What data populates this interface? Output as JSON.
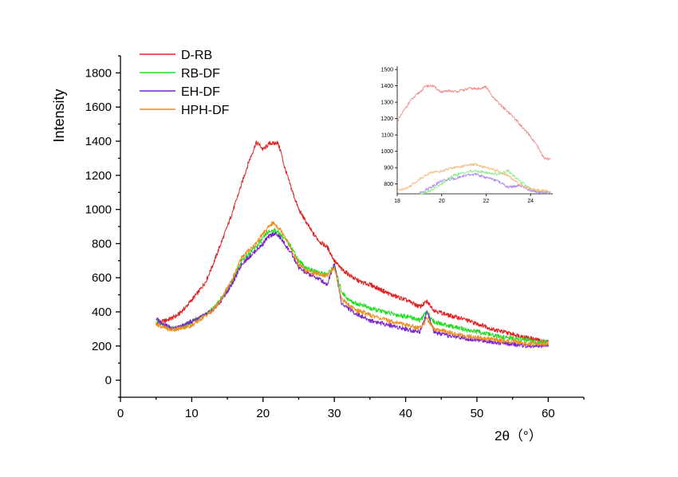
{
  "chart_data": [
    {
      "type": "line",
      "title": "",
      "xlabel": "2θ（°）",
      "ylabel": "Intensity",
      "xlim": [
        0,
        65
      ],
      "ylim": [
        -100,
        1900
      ],
      "xticks": [
        0,
        10,
        20,
        30,
        40,
        50,
        60
      ],
      "yticks": [
        0,
        200,
        400,
        600,
        800,
        1000,
        1200,
        1400,
        1600,
        1800
      ],
      "legend_position": "top-left",
      "grid": false,
      "series": [
        {
          "name": "D-RB",
          "color": "#e02020",
          "x": [
            5,
            6,
            7,
            8,
            9,
            10,
            11,
            12,
            13,
            14,
            15,
            16,
            17,
            18,
            18.5,
            19,
            19.5,
            20,
            20.5,
            21,
            21.5,
            22,
            22.5,
            23,
            24,
            25,
            26,
            27,
            28,
            29,
            30,
            31,
            32,
            33,
            34,
            35,
            36,
            37,
            38,
            39,
            40,
            41,
            42,
            43,
            44,
            45,
            46,
            47,
            48,
            49,
            50,
            51,
            52,
            53,
            54,
            55,
            56,
            57,
            58,
            59,
            60
          ],
          "y": [
            330,
            345,
            360,
            380,
            420,
            470,
            520,
            580,
            680,
            790,
            900,
            1020,
            1150,
            1280,
            1330,
            1390,
            1380,
            1350,
            1370,
            1390,
            1385,
            1395,
            1340,
            1250,
            1120,
            1000,
            930,
            860,
            810,
            780,
            700,
            650,
            620,
            590,
            570,
            560,
            540,
            520,
            500,
            485,
            470,
            450,
            430,
            460,
            410,
            395,
            380,
            370,
            360,
            345,
            330,
            320,
            300,
            290,
            280,
            270,
            260,
            250,
            240,
            230,
            225
          ]
        },
        {
          "name": "RB-DF",
          "color": "#22dd22",
          "x": [
            5,
            6,
            7,
            8,
            9,
            10,
            11,
            12,
            13,
            14,
            15,
            16,
            17,
            18,
            19,
            20,
            20.5,
            21,
            21.5,
            22,
            22.5,
            23,
            24,
            25,
            26,
            27,
            28,
            29,
            30,
            31,
            32,
            33,
            34,
            35,
            36,
            37,
            38,
            39,
            40,
            41,
            42,
            43,
            44,
            45,
            46,
            47,
            48,
            49,
            50,
            51,
            52,
            53,
            54,
            55,
            56,
            57,
            58,
            59,
            60
          ],
          "y": [
            345,
            320,
            305,
            300,
            320,
            340,
            365,
            390,
            420,
            470,
            530,
            600,
            700,
            740,
            780,
            830,
            860,
            870,
            880,
            870,
            850,
            830,
            780,
            700,
            660,
            640,
            630,
            620,
            670,
            520,
            470,
            450,
            440,
            420,
            410,
            400,
            390,
            380,
            375,
            365,
            350,
            400,
            340,
            330,
            320,
            310,
            300,
            290,
            285,
            275,
            265,
            255,
            250,
            245,
            240,
            235,
            225,
            218,
            225
          ]
        },
        {
          "name": "EH-DF",
          "color": "#7a22cc",
          "x": [
            5,
            6,
            7,
            8,
            9,
            10,
            11,
            12,
            13,
            14,
            15,
            16,
            17,
            18,
            19,
            20,
            20.5,
            21,
            21.5,
            22,
            22.5,
            23,
            24,
            25,
            26,
            27,
            28,
            29,
            30,
            31,
            32,
            33,
            34,
            35,
            36,
            37,
            38,
            39,
            40,
            41,
            42,
            43,
            44,
            45,
            46,
            47,
            48,
            49,
            50,
            51,
            52,
            53,
            54,
            55,
            56,
            57,
            58,
            59,
            60
          ],
          "y": [
            360,
            330,
            310,
            305,
            325,
            345,
            365,
            385,
            410,
            460,
            520,
            590,
            680,
            720,
            760,
            800,
            830,
            845,
            860,
            850,
            830,
            800,
            740,
            660,
            630,
            610,
            590,
            560,
            690,
            450,
            420,
            390,
            370,
            350,
            340,
            330,
            320,
            310,
            300,
            290,
            285,
            400,
            280,
            270,
            260,
            255,
            250,
            240,
            235,
            230,
            225,
            220,
            215,
            210,
            205,
            200,
            200,
            200,
            205
          ]
        },
        {
          "name": "HPH-DF",
          "color": "#f08c1e",
          "x": [
            5,
            6,
            7,
            8,
            9,
            10,
            11,
            12,
            13,
            14,
            15,
            16,
            17,
            18,
            19,
            20,
            20.5,
            21,
            21.5,
            22,
            22.5,
            23,
            24,
            25,
            26,
            27,
            28,
            29,
            30,
            31,
            32,
            33,
            34,
            35,
            36,
            37,
            38,
            39,
            40,
            41,
            42,
            43,
            44,
            45,
            46,
            47,
            48,
            49,
            50,
            51,
            52,
            53,
            54,
            55,
            56,
            57,
            58,
            59,
            60
          ],
          "y": [
            330,
            310,
            295,
            300,
            310,
            320,
            350,
            380,
            410,
            460,
            540,
            620,
            720,
            760,
            800,
            860,
            880,
            910,
            920,
            900,
            880,
            850,
            760,
            680,
            640,
            630,
            620,
            610,
            660,
            480,
            440,
            410,
            400,
            380,
            370,
            355,
            345,
            335,
            325,
            315,
            305,
            360,
            300,
            290,
            280,
            270,
            262,
            255,
            250,
            245,
            240,
            235,
            230,
            225,
            220,
            215,
            212,
            210,
            215
          ]
        }
      ]
    },
    {
      "type": "line",
      "title": "",
      "xlabel": "",
      "ylabel": "",
      "xlim": [
        18,
        25
      ],
      "ylim": [
        740,
        1520
      ],
      "xticks": [
        18,
        20,
        22,
        24
      ],
      "yticks": [
        800,
        900,
        1000,
        1100,
        1200,
        1300,
        1400,
        1500
      ],
      "grid": false,
      "series": [
        {
          "color": "#f08a8a",
          "x": [
            18,
            18.3,
            18.6,
            19,
            19.3,
            19.6,
            20,
            20.3,
            20.6,
            21,
            21.3,
            21.6,
            22,
            22.3,
            22.6,
            23,
            23.3,
            23.6,
            24,
            24.3,
            24.6,
            24.9
          ],
          "y": [
            1180,
            1250,
            1310,
            1360,
            1400,
            1400,
            1360,
            1370,
            1365,
            1375,
            1385,
            1380,
            1395,
            1330,
            1290,
            1240,
            1200,
            1150,
            1090,
            1030,
            960,
            950
          ]
        },
        {
          "color": "#88ee88",
          "x": [
            19,
            19.5,
            20,
            20.5,
            21,
            21.5,
            22,
            22.5,
            23,
            23.5,
            24,
            24.5,
            24.9
          ],
          "y": [
            740,
            760,
            800,
            850,
            870,
            880,
            870,
            860,
            880,
            820,
            770,
            755,
            750
          ]
        },
        {
          "color": "#b088ee",
          "x": [
            19,
            19.5,
            20,
            20.5,
            21,
            21.5,
            22,
            22.5,
            23,
            23.5,
            24,
            24.5,
            24.9
          ],
          "y": [
            745,
            780,
            820,
            830,
            850,
            860,
            840,
            820,
            780,
            790,
            760,
            750,
            745
          ]
        },
        {
          "color": "#f5bd82",
          "x": [
            18,
            18.5,
            19,
            19.5,
            20,
            20.5,
            21,
            21.5,
            22,
            22.5,
            23,
            23.5,
            24,
            24.5,
            24.9
          ],
          "y": [
            760,
            780,
            830,
            870,
            880,
            900,
            910,
            920,
            900,
            880,
            850,
            800,
            770,
            760,
            755
          ]
        }
      ]
    }
  ]
}
